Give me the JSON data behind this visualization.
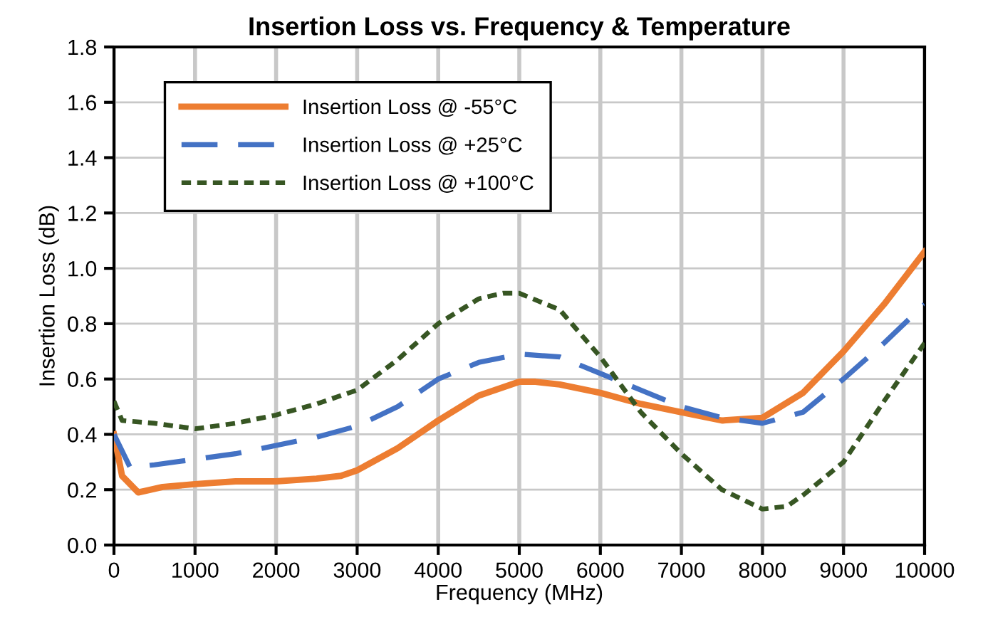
{
  "chart_data": {
    "type": "line",
    "title": "Insertion Loss vs. Frequency & Temperature",
    "xlabel": "Frequency (MHz)",
    "ylabel": "Insertion Loss (dB)",
    "xlim": [
      0,
      10000
    ],
    "xticks": [
      0,
      1000,
      2000,
      3000,
      4000,
      5000,
      6000,
      7000,
      8000,
      9000,
      10000
    ],
    "ylim": [
      0,
      1.8
    ],
    "yticks": [
      {
        "value": 0,
        "label": "0.0"
      },
      {
        "value": 0.2,
        "label": "0.2"
      },
      {
        "value": 0.4,
        "label": "0.4"
      },
      {
        "value": 0.6,
        "label": "0.6"
      },
      {
        "value": 0.8,
        "label": "0.8"
      },
      {
        "value": 1.0,
        "label": "1.0"
      },
      {
        "value": 1.2,
        "label": "1.2"
      },
      {
        "value": 1.4,
        "label": "1.4"
      },
      {
        "value": 1.6,
        "label": "1.6"
      },
      {
        "value": 1.8,
        "label": "1.8"
      }
    ],
    "grid": true,
    "legend": "top left",
    "series": [
      {
        "name": "Insertion Loss @ -55°C",
        "color": "#ed7d31",
        "line_style": "solid",
        "x": [
          0,
          100,
          300,
          600,
          1000,
          1500,
          2000,
          2500,
          2800,
          3000,
          3500,
          4000,
          4500,
          5000,
          5200,
          5500,
          6000,
          6500,
          7000,
          7500,
          8000,
          8500,
          9000,
          9500,
          10000
        ],
        "values": [
          0.4,
          0.25,
          0.19,
          0.21,
          0.22,
          0.23,
          0.23,
          0.24,
          0.25,
          0.27,
          0.35,
          0.45,
          0.54,
          0.59,
          0.59,
          0.58,
          0.55,
          0.51,
          0.48,
          0.45,
          0.46,
          0.55,
          0.7,
          0.87,
          1.06
        ]
      },
      {
        "name": "Insertion Loss @ +25°C",
        "color": "#4472c4",
        "line_style": "dashed",
        "x": [
          0,
          200,
          500,
          1000,
          1500,
          2000,
          2500,
          3000,
          3500,
          4000,
          4500,
          5000,
          5500,
          6000,
          6500,
          7000,
          7500,
          8000,
          8500,
          9000,
          9500,
          10000
        ],
        "values": [
          0.4,
          0.28,
          0.29,
          0.31,
          0.33,
          0.36,
          0.39,
          0.43,
          0.5,
          0.6,
          0.66,
          0.69,
          0.68,
          0.62,
          0.56,
          0.5,
          0.46,
          0.44,
          0.48,
          0.6,
          0.73,
          0.87
        ]
      },
      {
        "name": "Insertion Loss @ +100°C",
        "color": "#375623",
        "line_style": "dotted",
        "x": [
          0,
          100,
          500,
          1000,
          1500,
          2000,
          2500,
          3000,
          3500,
          4000,
          4500,
          4800,
          5000,
          5500,
          6000,
          6500,
          7000,
          7500,
          8000,
          8300,
          8500,
          9000,
          9500,
          10000
        ],
        "values": [
          0.52,
          0.45,
          0.44,
          0.42,
          0.44,
          0.47,
          0.51,
          0.56,
          0.67,
          0.8,
          0.89,
          0.91,
          0.91,
          0.85,
          0.68,
          0.48,
          0.33,
          0.2,
          0.13,
          0.14,
          0.18,
          0.3,
          0.52,
          0.73
        ]
      }
    ]
  }
}
